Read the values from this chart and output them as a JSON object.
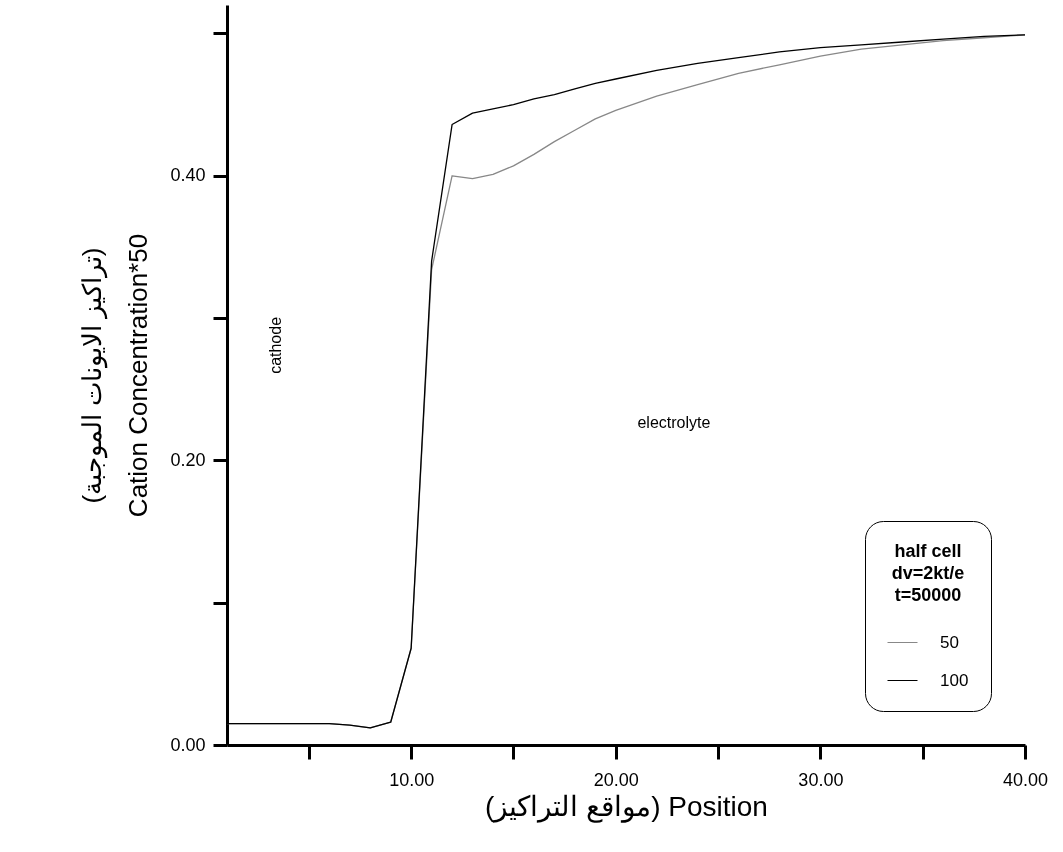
{
  "chart_data": {
    "type": "line",
    "xlabel": "(مواقع التراكيز) Position",
    "ylabel": "(تراكيز الايونات الموجبة)\nCation Concentration*50",
    "legend_title": "half cell\ndv=2kt/e\nt=50000",
    "x": [
      1,
      2,
      3,
      4,
      5,
      6,
      7,
      8,
      9,
      10,
      11,
      12,
      13,
      14,
      15,
      16,
      17,
      18,
      19,
      20,
      22,
      24,
      26,
      28,
      30,
      32,
      34,
      36,
      38,
      40
    ],
    "series": [
      {
        "name": "50",
        "color": "#888888",
        "values": [
          0.015,
          0.015,
          0.015,
          0.015,
          0.015,
          0.015,
          0.014,
          0.012,
          0.016,
          0.068,
          0.334,
          0.4,
          0.398,
          0.401,
          0.407,
          0.415,
          0.424,
          0.432,
          0.44,
          0.446,
          0.456,
          0.464,
          0.472,
          0.478,
          0.484,
          0.489,
          0.492,
          0.495,
          0.497,
          0.499
        ]
      },
      {
        "name": "100",
        "color": "#000000",
        "values": [
          0.015,
          0.015,
          0.015,
          0.015,
          0.015,
          0.015,
          0.014,
          0.012,
          0.016,
          0.068,
          0.34,
          0.436,
          0.444,
          0.447,
          0.45,
          0.454,
          0.457,
          0.461,
          0.465,
          0.468,
          0.474,
          0.479,
          0.483,
          0.487,
          0.49,
          0.492,
          0.494,
          0.496,
          0.498,
          0.499
        ]
      }
    ],
    "xlim": [
      1,
      40
    ],
    "ylim": [
      0,
      0.52
    ],
    "xticks": [
      {
        "value": 5,
        "label": null
      },
      {
        "value": 10,
        "label": "10.00"
      },
      {
        "value": 15,
        "label": null
      },
      {
        "value": 20,
        "label": "20.00"
      },
      {
        "value": 25,
        "label": null
      },
      {
        "value": 30,
        "label": "30.00"
      },
      {
        "value": 35,
        "label": null
      },
      {
        "value": 40,
        "label": "40.00"
      }
    ],
    "yticks": [
      {
        "value": 0,
        "label": "0.00"
      },
      {
        "value": 0.1,
        "label": null
      },
      {
        "value": 0.2,
        "label": "0.20"
      },
      {
        "value": 0.3,
        "label": null
      },
      {
        "value": 0.4,
        "label": "0.40"
      },
      {
        "value": 0.5,
        "label": null
      }
    ],
    "annotations": [
      "cathode",
      "electrolyte"
    ],
    "legend": "bottom right",
    "grid": false,
    "marker": "none",
    "line_style": "solid"
  }
}
